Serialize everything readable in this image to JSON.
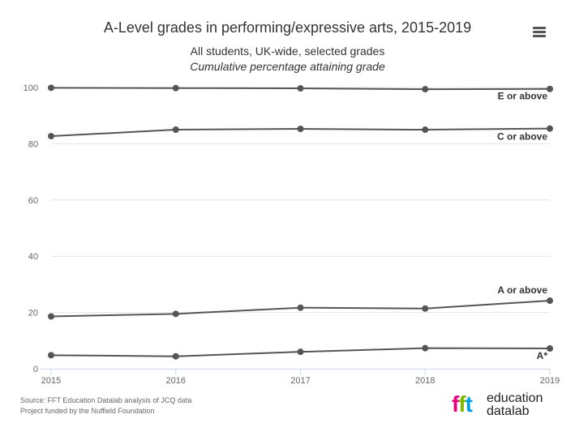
{
  "header": {
    "title": "A-Level grades in performing/expressive arts, 2015-2019",
    "subtitle_line1": "All students, UK-wide, selected grades",
    "subtitle_line2": "Cumulative percentage attaining grade",
    "menu_icon": "hamburger-menu-icon"
  },
  "footer": {
    "source": "Source: FFT Education Datalab analysis of JCQ data",
    "funding": "Project funded by the Nuffield Foundation",
    "logo_line1": "education",
    "logo_line2": "datalab",
    "logo_mark": "fft"
  },
  "colors": {
    "series": "#555555",
    "grid": "#e6e6e6",
    "axis": "#ccd6eb",
    "logo_f1": "#e6007e",
    "logo_f2": "#7fba00",
    "logo_t": "#00a0e3"
  },
  "chart_data": {
    "type": "line",
    "x": [
      "2015",
      "2016",
      "2017",
      "2018",
      "2019"
    ],
    "ylim": [
      0,
      100
    ],
    "yticks": [
      0,
      20,
      40,
      60,
      80,
      100
    ],
    "grid": true,
    "legend": "end-of-line labels",
    "series": [
      {
        "name": "E or above",
        "values": [
          99.9,
          99.8,
          99.7,
          99.4,
          99.5
        ]
      },
      {
        "name": "C or above",
        "values": [
          82.7,
          85.0,
          85.3,
          85.0,
          85.4
        ]
      },
      {
        "name": "A or above",
        "values": [
          18.6,
          19.5,
          21.7,
          21.4,
          24.2
        ]
      },
      {
        "name": "A*",
        "values": [
          4.8,
          4.4,
          6.0,
          7.3,
          7.2
        ]
      }
    ]
  }
}
